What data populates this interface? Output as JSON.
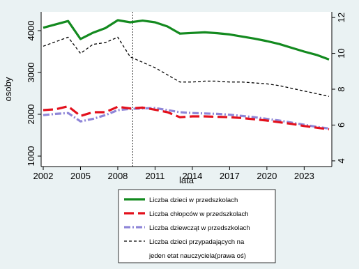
{
  "chart_data": {
    "type": "line",
    "xlabel": "lata",
    "ylabel_left": "osoby",
    "ylabel_right": "",
    "xlim": [
      2002,
      2025
    ],
    "ylim_left": [
      800,
      4400
    ],
    "ylim_right": [
      3.8,
      12.2
    ],
    "xticks": [
      2002,
      2005,
      2008,
      2011,
      2014,
      2017,
      2020,
      2023
    ],
    "yticks_left": [
      1000,
      2000,
      3000,
      4000
    ],
    "yticks_right": [
      4,
      6,
      8,
      10,
      12
    ],
    "vline_x": 2009.2,
    "grid": false,
    "legend_placement": "bottom",
    "series": [
      {
        "name": "Liczba dzieci w przedszkolach",
        "axis": "left",
        "color": "#138a1f",
        "dash": "solid",
        "x": [
          2002,
          2004,
          2005,
          2006,
          2007,
          2008,
          2009,
          2010,
          2011,
          2012,
          2013,
          2015,
          2016,
          2017,
          2018,
          2019,
          2020,
          2021,
          2022,
          2023,
          2024,
          2025
        ],
        "values": [
          4070,
          4230,
          3800,
          3950,
          4060,
          4250,
          4200,
          4240,
          4200,
          4100,
          3930,
          3960,
          3940,
          3910,
          3860,
          3810,
          3750,
          3680,
          3590,
          3500,
          3420,
          3310
        ]
      },
      {
        "name": "Liczba chłopców w przedszkolach",
        "axis": "left",
        "color": "#e3101c",
        "dash": "long",
        "x": [
          2002,
          2003,
          2004,
          2005,
          2006,
          2007,
          2008,
          2009,
          2010,
          2011,
          2012,
          2013,
          2014,
          2015,
          2016,
          2017,
          2018,
          2019,
          2020,
          2021,
          2022,
          2023,
          2024,
          2025
        ],
        "values": [
          2100,
          2120,
          2190,
          1960,
          2050,
          2050,
          2180,
          2140,
          2160,
          2110,
          2050,
          1930,
          1950,
          1950,
          1940,
          1930,
          1910,
          1880,
          1850,
          1810,
          1770,
          1720,
          1680,
          1640
        ]
      },
      {
        "name": "Liczba dziewcząt w przedszkolach",
        "axis": "left",
        "color": "#8f86d8",
        "dash": "dashdot",
        "x": [
          2002,
          2003,
          2004,
          2005,
          2006,
          2007,
          2008,
          2009,
          2010,
          2011,
          2012,
          2013,
          2014,
          2015,
          2016,
          2017,
          2018,
          2019,
          2020,
          2021,
          2022,
          2023,
          2024,
          2025
        ],
        "values": [
          1980,
          2010,
          2030,
          1830,
          1890,
          1980,
          2100,
          2130,
          2140,
          2150,
          2100,
          2050,
          2030,
          2020,
          2010,
          1990,
          1960,
          1930,
          1890,
          1850,
          1800,
          1750,
          1700,
          1660
        ]
      },
      {
        "name": "Liczba dzieci przypadających na jeden etat nauczyciela(prawa oś)",
        "legend_lines": [
          "Liczba dzieci przypadających na",
          "jeden etat nauczyciela(prawa oś)"
        ],
        "axis": "right",
        "color": "#000000",
        "dash": "short",
        "x": [
          2002,
          2004,
          2005,
          2006,
          2007,
          2008,
          2009,
          2011,
          2012,
          2013,
          2014,
          2015,
          2016,
          2017,
          2018,
          2019,
          2020,
          2021,
          2022,
          2023,
          2024,
          2025
        ],
        "values": [
          10.4,
          10.9,
          10.0,
          10.5,
          10.6,
          10.9,
          9.8,
          9.2,
          8.8,
          8.4,
          8.4,
          8.45,
          8.45,
          8.4,
          8.4,
          8.35,
          8.3,
          8.2,
          8.05,
          7.9,
          7.75,
          7.6
        ]
      }
    ]
  }
}
